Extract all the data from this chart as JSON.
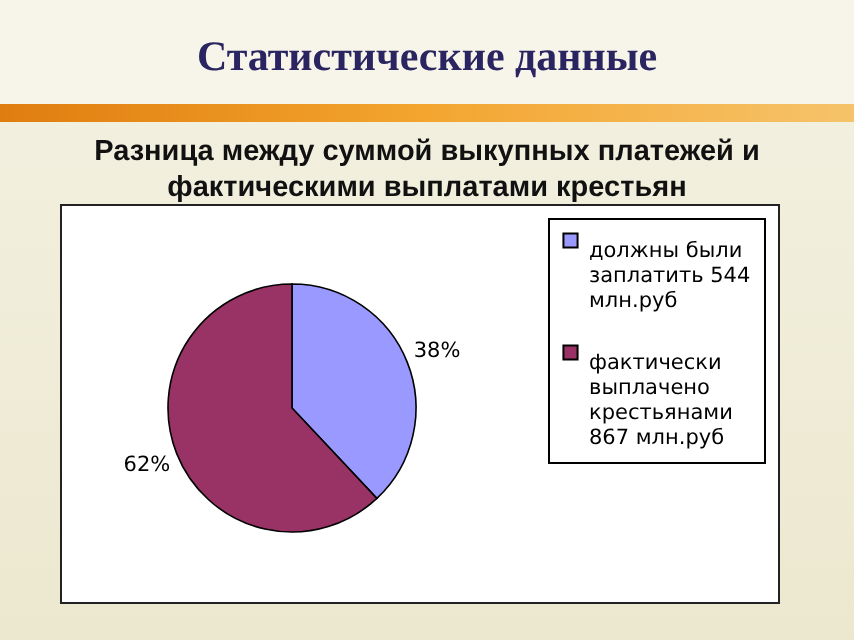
{
  "chart_data": {
    "type": "pie",
    "title": "Статистические данные",
    "subtitle": "Разница между суммой выкупных платежей и фактическими выплатами крестьян",
    "categories": [
      "должны были заплатить 544 млн.руб",
      "фактически выплачено крестьянами 867 млн.руб"
    ],
    "values": [
      38,
      62
    ],
    "colors": [
      "#9999ff",
      "#993366"
    ],
    "value_labels": [
      "38%",
      "62%"
    ],
    "legend": "right"
  }
}
